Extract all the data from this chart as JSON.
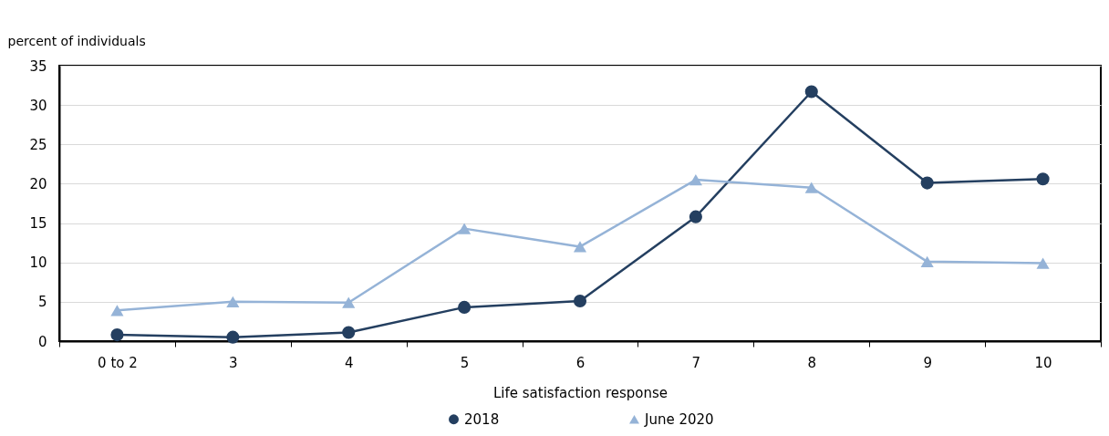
{
  "chart_data": {
    "type": "line",
    "xlabel": "Life satisfaction response",
    "ylabel": "percent of individuals",
    "categories": [
      "0 to 2",
      "3",
      "4",
      "5",
      "6",
      "7",
      "8",
      "9",
      "10"
    ],
    "series": [
      {
        "name": "2018",
        "color": "#243f60",
        "marker": "circle",
        "values": [
          0.8,
          0.5,
          1.1,
          4.3,
          5.1,
          15.8,
          31.7,
          20.1,
          20.6
        ]
      },
      {
        "name": "June 2020",
        "color": "#95b3d7",
        "marker": "triangle",
        "values": [
          3.9,
          5.0,
          4.9,
          14.3,
          12.0,
          20.5,
          19.5,
          10.1,
          9.9
        ]
      }
    ],
    "ylim": [
      0,
      35
    ],
    "yticks": [
      0,
      5,
      10,
      15,
      20,
      25,
      30,
      35
    ],
    "grid": "y",
    "legend": "bottom",
    "line_style": "solid"
  }
}
